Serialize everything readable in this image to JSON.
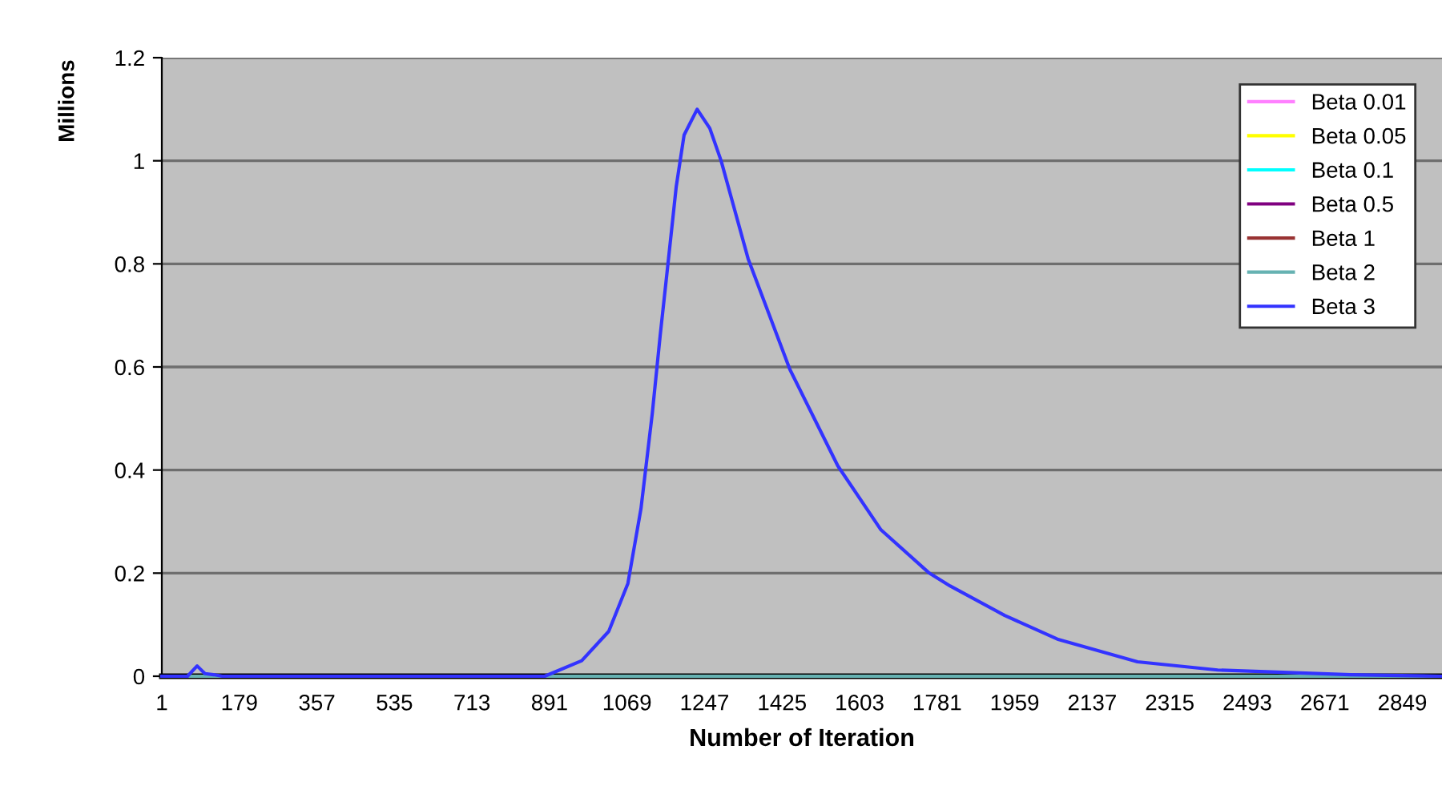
{
  "chart_data": {
    "type": "line",
    "xlabel": "Number of Iteration",
    "ylabel": "Millions",
    "xlim": [
      1,
      2940
    ],
    "xticks": [
      1,
      179,
      357,
      535,
      713,
      891,
      1069,
      1247,
      1425,
      1603,
      1781,
      1959,
      2137,
      2315,
      2493,
      2671,
      2849
    ],
    "ylim": [
      0,
      1.2
    ],
    "yticks": [
      0,
      0.2,
      0.4,
      0.6,
      0.8,
      1,
      1.2
    ],
    "grid": "y",
    "legend": "top right",
    "marker": "none",
    "line_style": "solid",
    "series": [
      {
        "name": "Beta 0.01",
        "color": "#ff80ff"
      },
      {
        "name": "Beta 0.05",
        "color": "#ffff00"
      },
      {
        "name": "Beta 0.1",
        "color": "#00ffff"
      },
      {
        "name": "Beta 0.5",
        "color": "#800080"
      },
      {
        "name": "Beta 1",
        "color": "#993333"
      },
      {
        "name": "Beta 2",
        "color": "#66b2b2",
        "x": [
          1,
          2940
        ],
        "values": [
          0,
          0
        ]
      },
      {
        "name": "Beta 3",
        "color": "#3333ff",
        "x": [
          1,
          60,
          82,
          100,
          120,
          140,
          880,
          965,
          1027,
          1071,
          1101,
          1127,
          1145,
          1163,
          1182,
          1200,
          1230,
          1259,
          1285,
          1347,
          1443,
          1553,
          1652,
          1763,
          1811,
          1936,
          2057,
          2241,
          2425,
          2730,
          2940
        ],
        "values": [
          0,
          0,
          0.02,
          0.005,
          0.003,
          0,
          0,
          0.03,
          0.087,
          0.18,
          0.325,
          0.51,
          0.66,
          0.8,
          0.95,
          1.05,
          1.1,
          1.063,
          1.0,
          0.81,
          0.595,
          0.408,
          0.284,
          0.2,
          0.175,
          0.118,
          0.072,
          0.028,
          0.012,
          0.003,
          0
        ]
      }
    ]
  }
}
